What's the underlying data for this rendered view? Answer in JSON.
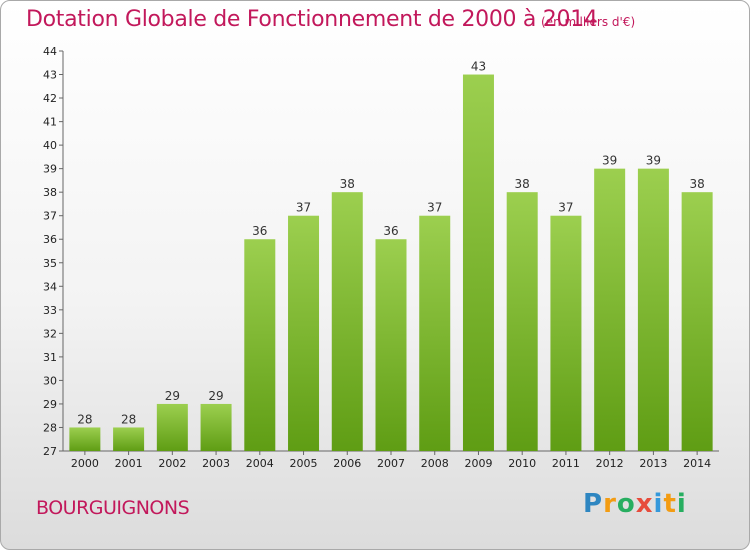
{
  "header": {
    "title": "Dotation Globale de Fonctionnement de 2000 à 2014",
    "unit": "(en milliers d'€)"
  },
  "footer": {
    "commune": "BOURGUIGNONS",
    "brand_letters": [
      {
        "char": "P",
        "color": "#2e86c1"
      },
      {
        "char": "r",
        "color": "#f39c12"
      },
      {
        "char": "o",
        "color": "#27ae60"
      },
      {
        "char": "x",
        "color": "#e74c3c"
      },
      {
        "char": "i",
        "color": "#3498db"
      },
      {
        "char": "t",
        "color": "#f39c12"
      },
      {
        "char": "i",
        "color": "#27ae60"
      }
    ]
  },
  "colors": {
    "bar_top": "#9ccf4f",
    "bar_bottom": "#5f9d14",
    "title": "#c2185b"
  },
  "chart_data": {
    "type": "bar",
    "categories": [
      "2000",
      "2001",
      "2002",
      "2003",
      "2004",
      "2005",
      "2006",
      "2007",
      "2008",
      "2009",
      "2010",
      "2011",
      "2012",
      "2013",
      "2014"
    ],
    "values": [
      28,
      28,
      29,
      29,
      36,
      37,
      38,
      36,
      37,
      43,
      38,
      37,
      39,
      39,
      38
    ],
    "title": "Dotation Globale de Fonctionnement de 2000 à 2014",
    "subtitle": "(en milliers d'€)",
    "xlabel": "",
    "ylabel": "",
    "ylim": [
      27,
      44
    ],
    "yticks": [
      27,
      28,
      29,
      30,
      31,
      32,
      33,
      34,
      35,
      36,
      37,
      38,
      39,
      40,
      41,
      42,
      43,
      44
    ],
    "grid": false,
    "legend": "none"
  }
}
